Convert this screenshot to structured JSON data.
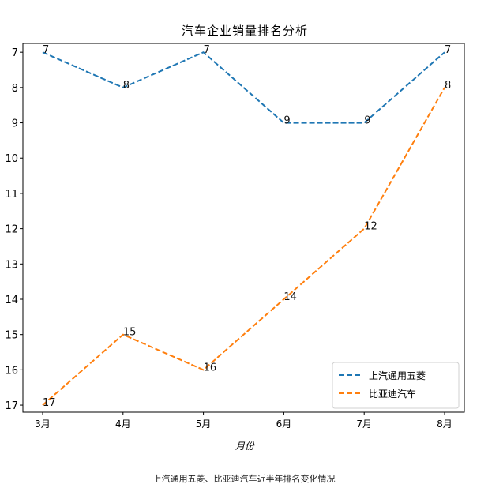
{
  "caption": "上汽通用五菱、比亚迪汽车近半年排名变化情况",
  "chart_data": {
    "type": "line",
    "title": "汽车企业销量排名分析",
    "xlabel": "月份",
    "ylabel": "",
    "categories": [
      "3月",
      "4月",
      "5月",
      "6月",
      "7月",
      "8月"
    ],
    "y_ticks": [
      7,
      8,
      9,
      10,
      11,
      12,
      13,
      14,
      15,
      16,
      17
    ],
    "ylim": [
      17.2,
      6.75
    ],
    "y_inverted": true,
    "grid": false,
    "legend_position": "lower-right",
    "series": [
      {
        "name": "上汽通用五菱",
        "values": [
          7,
          8,
          7,
          9,
          9,
          7
        ],
        "color": "#1f77b4",
        "line_style": "dashed"
      },
      {
        "name": "比亚迪汽车",
        "values": [
          17,
          15,
          16,
          14,
          12,
          8
        ],
        "color": "#ff7f0e",
        "line_style": "dashed"
      }
    ]
  }
}
